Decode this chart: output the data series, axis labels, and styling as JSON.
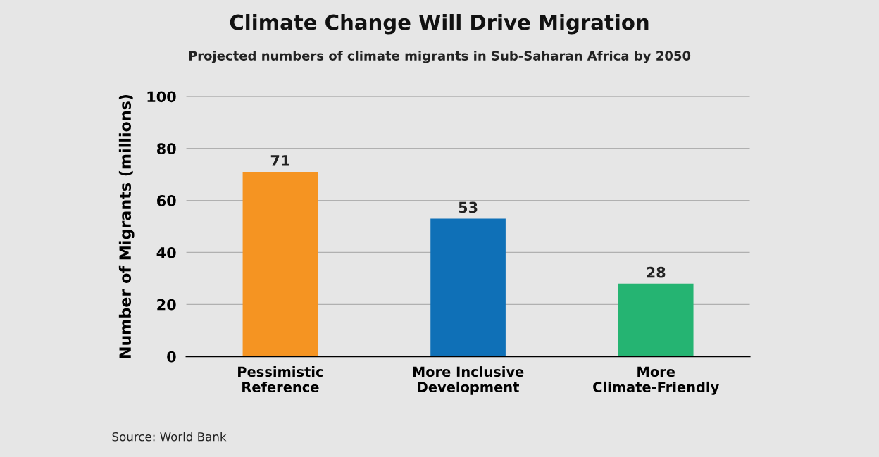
{
  "chart_data": {
    "type": "bar",
    "title": "Climate Change Will Drive Migration",
    "subtitle": "Projected numbers of climate migrants in Sub-Saharan Africa by 2050",
    "ylabel": "Number of Migrants (millions)",
    "categories": [
      "Pessimistic\nReference",
      "More Inclusive\nDevelopment",
      "More\nClimate-Friendly"
    ],
    "values": [
      71,
      53,
      28
    ],
    "colors": [
      "#f59422",
      "#0f70b7",
      "#25b472"
    ],
    "ylim": [
      0,
      100
    ],
    "yticks": [
      0,
      20,
      40,
      60,
      80,
      100
    ],
    "grid": "y",
    "data_labels": true,
    "annotations": [
      "Source: World Bank"
    ]
  }
}
